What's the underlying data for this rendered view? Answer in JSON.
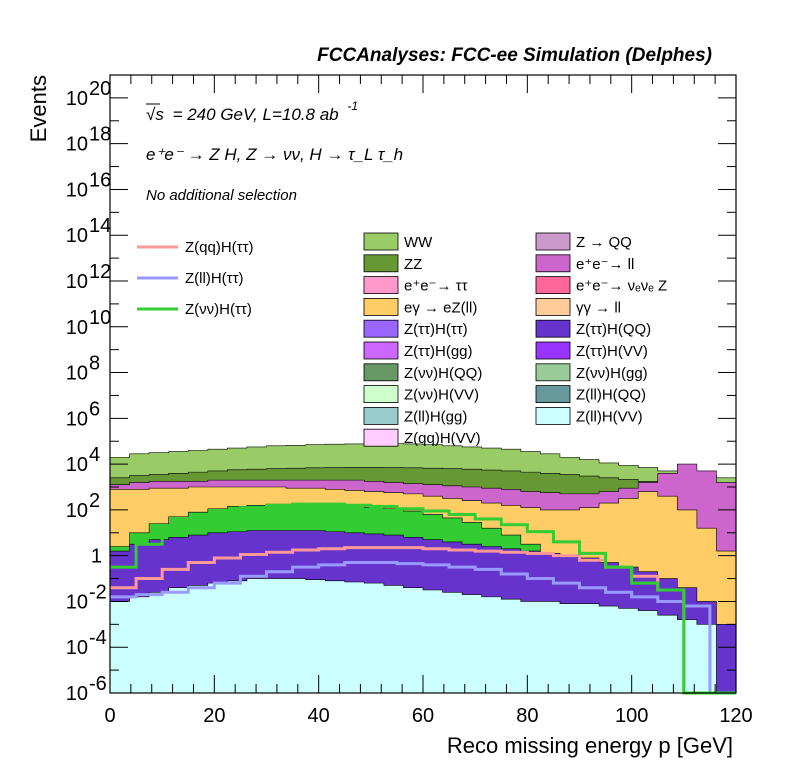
{
  "header": "FCCAnalyses: FCC-ee Simulation (Delphes)",
  "annotations": {
    "energy_sqrt": "√s",
    "energy_rest": "= 240 GeV, L=10.8 ab",
    "lumi_exp": "-1",
    "process": "e⁺e⁻ → Z H, Z → νν, H → τ_L τ_h",
    "selection": "No additional selection"
  },
  "chart_data": {
    "type": "stacked-histogram-log",
    "xlabel": "Reco missing energy p [GeV]",
    "ylabel": "Events",
    "xlim": [
      0,
      120
    ],
    "ylim": [
      1e-06,
      1e+21
    ],
    "log_y": true,
    "grid": false,
    "x_ticks": [
      "0",
      "20",
      "40",
      "60",
      "80",
      "100",
      "120"
    ],
    "y_ticks": [
      {
        "base": "10",
        "exp": "-6"
      },
      {
        "base": "10",
        "exp": "-4"
      },
      {
        "base": "10",
        "exp": "-2"
      },
      {
        "base": "1",
        "exp": ""
      },
      {
        "base": "10",
        "exp": "2"
      },
      {
        "base": "10",
        "exp": "4"
      },
      {
        "base": "10",
        "exp": "6"
      },
      {
        "base": "10",
        "exp": "8"
      },
      {
        "base": "10",
        "exp": "10"
      },
      {
        "base": "10",
        "exp": "12"
      },
      {
        "base": "10",
        "exp": "14"
      },
      {
        "base": "10",
        "exp": "16"
      },
      {
        "base": "10",
        "exp": "18"
      },
      {
        "base": "10",
        "exp": "20"
      }
    ],
    "stack_boundaries": [
      {
        "name": "WW",
        "color": "#99cc66",
        "top_log10": [
          4.3,
          4.45,
          4.5,
          4.55,
          4.6,
          4.65,
          4.7,
          4.75,
          4.8,
          4.82,
          4.85,
          4.87,
          4.88,
          4.9,
          4.9,
          4.88,
          4.85,
          4.8,
          4.75,
          4.7,
          4.65,
          4.55,
          4.45,
          4.3,
          4.2,
          4.05,
          3.95,
          3.85,
          3.7,
          3.6,
          3.5,
          3.4
        ]
      },
      {
        "name": "ZZ",
        "color": "#669933",
        "top_log10": [
          3.4,
          3.5,
          3.55,
          3.6,
          3.65,
          3.7,
          3.75,
          3.78,
          3.8,
          3.82,
          3.84,
          3.85,
          3.86,
          3.86,
          3.85,
          3.84,
          3.82,
          3.8,
          3.78,
          3.74,
          3.7,
          3.65,
          3.6,
          3.55,
          3.48,
          3.4,
          3.33,
          3.25,
          3.18,
          3.1,
          3.05,
          3.0
        ]
      },
      {
        "name": "e+e- → ll",
        "color": "#cc66cc",
        "top_log10": [
          3.1,
          3.2,
          3.25,
          3.25,
          3.25,
          3.3,
          3.3,
          3.3,
          3.3,
          3.3,
          3.3,
          3.3,
          3.3,
          3.25,
          3.2,
          3.15,
          3.1,
          3.05,
          3.0,
          2.95,
          2.9,
          2.8,
          2.75,
          2.7,
          2.7,
          2.8,
          2.95,
          3.2,
          3.6,
          4.0,
          3.7,
          3.2
        ]
      },
      {
        "name": "eγ → eZ(ll)",
        "color": "#ffcc66",
        "top_log10": [
          2.9,
          2.9,
          2.95,
          2.95,
          3.0,
          3.0,
          3.0,
          3.0,
          3.0,
          2.95,
          2.95,
          2.9,
          2.85,
          2.8,
          2.75,
          2.7,
          2.6,
          2.5,
          2.4,
          2.3,
          2.2,
          2.1,
          2.0,
          2.0,
          2.1,
          2.3,
          2.5,
          2.8,
          2.6,
          2.0,
          1.2,
          0.2
        ]
      },
      {
        "name": "Z(νν)H(ττ)",
        "color": "#33cc33",
        "top_log10": [
          0.4,
          1.0,
          1.4,
          1.7,
          1.9,
          2.05,
          2.15,
          2.2,
          2.25,
          2.25,
          2.25,
          2.22,
          2.18,
          2.12,
          2.05,
          1.95,
          1.8,
          1.65,
          1.45,
          1.2,
          0.9,
          0.5,
          0.1,
          -0.3,
          -0.7,
          -1.2,
          -1.6,
          -2.0,
          -2.4,
          -2.8,
          -3.0,
          -3.0
        ]
      },
      {
        "name": "Z(ττ)H(QQ)",
        "color": "#6633cc",
        "top_log10": [
          0.2,
          0.5,
          0.7,
          0.8,
          0.9,
          1.0,
          1.05,
          1.1,
          1.1,
          1.1,
          1.1,
          1.05,
          1.0,
          0.95,
          0.9,
          0.8,
          0.7,
          0.6,
          0.5,
          0.4,
          0.3,
          0.2,
          0.1,
          0.0,
          -0.1,
          -0.3,
          -0.5,
          -0.7,
          -1.0,
          -1.4,
          -2.0,
          -3.0
        ]
      },
      {
        "name": "Z(ll)H(VV)",
        "color": "#ccffff",
        "top_log10": [
          -2.0,
          -1.8,
          -1.6,
          -1.4,
          -1.3,
          -1.2,
          -1.1,
          -1.0,
          -1.0,
          -1.0,
          -1.05,
          -1.1,
          -1.15,
          -1.2,
          -1.3,
          -1.4,
          -1.5,
          -1.6,
          -1.7,
          -1.8,
          -1.9,
          -2.0,
          -2.0,
          -2.1,
          -2.1,
          -2.2,
          -2.3,
          -2.4,
          -2.6,
          -2.8,
          -3.0,
          -6.0
        ]
      }
    ],
    "overlay_series": [
      {
        "name": "Z(qq)H(ττ)",
        "color": "#ff9999",
        "values_log10": [
          -1.4,
          -1.0,
          -0.6,
          -0.3,
          -0.1,
          0.05,
          0.15,
          0.25,
          0.3,
          0.35,
          0.35,
          0.35,
          0.3,
          0.25,
          0.2,
          0.15,
          0.1,
          0.0,
          -0.2,
          -0.5,
          -0.9,
          -1.5,
          -6.0,
          -6.0
        ]
      },
      {
        "name": "Z(ll)H(ττ)",
        "color": "#9999ff",
        "values_log10": [
          -1.8,
          -1.7,
          -1.6,
          -1.4,
          -1.2,
          -0.9,
          -0.7,
          -0.5,
          -0.4,
          -0.3,
          -0.3,
          -0.35,
          -0.4,
          -0.5,
          -0.6,
          -0.8,
          -1.0,
          -1.2,
          -1.4,
          -1.6,
          -1.8,
          -2.0,
          -2.2,
          -6.0
        ]
      },
      {
        "name": "Z(νν)H(ττ)",
        "color": "#33cc33",
        "values_log10": [
          -0.5,
          0.5,
          1.2,
          1.6,
          1.9,
          2.1,
          2.2,
          2.25,
          2.25,
          2.2,
          2.15,
          2.05,
          1.95,
          1.8,
          1.6,
          1.35,
          1.05,
          0.6,
          0.1,
          -0.5,
          -1.2,
          -1.5,
          -6.0,
          -6.0
        ]
      }
    ],
    "legend_overlays": [
      {
        "label": "Z(qq)H(ττ)",
        "color": "#ff9999"
      },
      {
        "label": "Z(ll)H(ττ)",
        "color": "#9999ff"
      },
      {
        "label": "Z(νν)H(ττ)",
        "color": "#33cc33"
      }
    ],
    "legend_stack_col1": [
      {
        "label": "WW",
        "color": "#99cc66"
      },
      {
        "label": "ZZ",
        "color": "#669933"
      },
      {
        "label": "e⁺e⁻→ ττ",
        "color": "#ff99cc"
      },
      {
        "label": "eγ → eZ(ll)",
        "color": "#ffcc66"
      },
      {
        "label": "Z(ττ)H(ττ)",
        "color": "#9966ff"
      },
      {
        "label": "Z(ττ)H(gg)",
        "color": "#cc66ff"
      },
      {
        "label": "Z(νν)H(QQ)",
        "color": "#669966"
      },
      {
        "label": "Z(νν)H(VV)",
        "color": "#ccffcc"
      },
      {
        "label": "Z(ll)H(gg)",
        "color": "#99cccc"
      },
      {
        "label": "Z(qq)H(VV)",
        "color": "#ffccff"
      }
    ],
    "legend_stack_col2": [
      {
        "label": "Z → QQ",
        "color": "#cc99cc"
      },
      {
        "label": "e⁺e⁻→ ll",
        "color": "#cc66cc"
      },
      {
        "label": "e⁺e⁻→ νₑνₑ Z",
        "color": "#ff6699"
      },
      {
        "label": "γγ → ll",
        "color": "#ffcc99"
      },
      {
        "label": "Z(ττ)H(QQ)",
        "color": "#6633cc"
      },
      {
        "label": "Z(ττ)H(VV)",
        "color": "#9933ff"
      },
      {
        "label": "Z(νν)H(gg)",
        "color": "#99cc99"
      },
      {
        "label": "Z(ll)H(QQ)",
        "color": "#669999"
      },
      {
        "label": "Z(ll)H(VV)",
        "color": "#ccffff"
      }
    ]
  }
}
